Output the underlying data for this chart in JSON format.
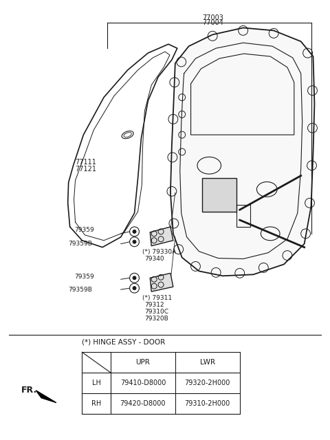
{
  "bg_color": "#ffffff",
  "line_color": "#1a1a1a",
  "text_color": "#1a1a1a",
  "hinge_label": "(*) HINGE ASSY - DOOR",
  "table_headers": [
    "",
    "UPR",
    "LWR"
  ],
  "table_rows": [
    [
      "LH",
      "79410-D8000",
      "79320-2H000"
    ],
    [
      "RH",
      "79420-D8000",
      "79310-2H000"
    ]
  ],
  "fr_text": "FR.",
  "top_labels": [
    "77003",
    "77004"
  ],
  "left_labels": [
    "77111",
    "77121"
  ],
  "upper_hinge_labels": [
    "(*) 79330A",
    "79340"
  ],
  "lower_hinge_labels": [
    "(*) 79311",
    "79312",
    "79310C",
    "79320B"
  ],
  "bolt_label_upper": [
    "79359",
    "79359B"
  ],
  "bolt_label_lower": [
    "79359",
    "79359B"
  ]
}
